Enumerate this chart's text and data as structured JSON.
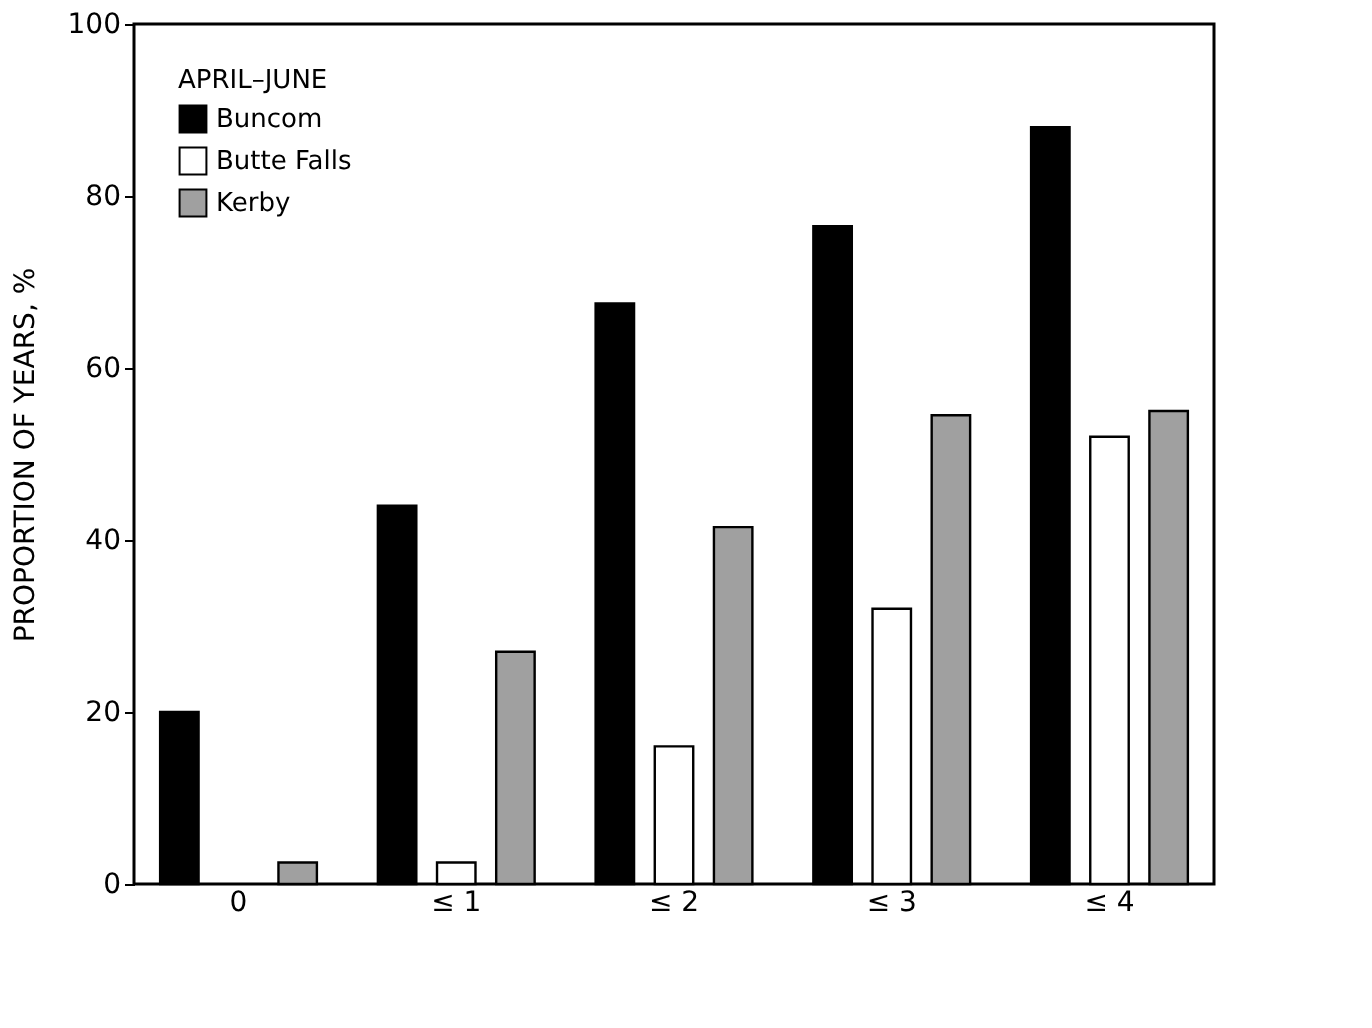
{
  "chart_data": {
    "type": "bar",
    "ylabel": "PROPORTION OF YEARS, %",
    "legend_title": "APRIL–JUNE",
    "legend": "top left",
    "grid": false,
    "categories": [
      "0",
      "≤ 1",
      "≤ 2",
      "≤ 3",
      "≤ 4"
    ],
    "series": [
      {
        "name": "Buncom",
        "color": "#000000",
        "values": [
          20,
          44,
          67.5,
          76.5,
          88
        ]
      },
      {
        "name": "Butte Falls",
        "color": "#ffffff",
        "values": [
          0,
          2.5,
          16,
          32,
          52
        ]
      },
      {
        "name": "Kerby",
        "color": "#a0a0a0",
        "values": [
          2.5,
          27,
          41.5,
          54.5,
          55
        ]
      }
    ],
    "ylim": [
      0,
      100
    ],
    "yticks": [
      0,
      20,
      40,
      60,
      80,
      100
    ]
  }
}
